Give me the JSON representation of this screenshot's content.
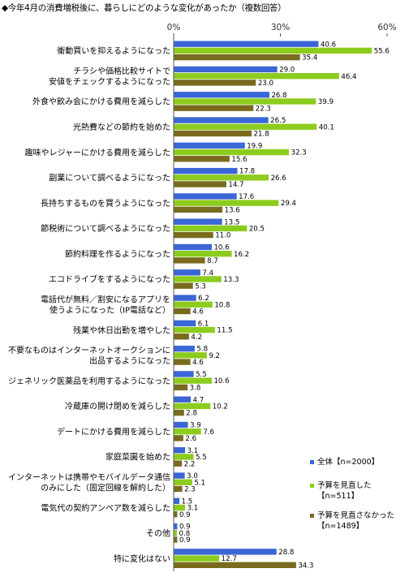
{
  "title": "◆今年4月の消費増税後に、暮らしにどのような変化があったか（複数回答）",
  "chart_data": {
    "type": "bar",
    "orientation": "horizontal",
    "xlim": [
      0,
      60
    ],
    "ticks": [
      {
        "value": 0,
        "label": "0%"
      },
      {
        "value": 30,
        "label": "30%"
      },
      {
        "value": 60,
        "label": "60%"
      }
    ],
    "grid": false,
    "legend_position": "right",
    "categories": [
      [
        "衝動買いを抑えるようになった"
      ],
      [
        "チラシや価格比較サイトで",
        "安値をチェックするようになった"
      ],
      [
        "外食や飲み会にかける費用を減らした"
      ],
      [
        "光熱費などの節約を始めた"
      ],
      [
        "趣味やレジャーにかける費用を減らした"
      ],
      [
        "副業について調べるようになった"
      ],
      [
        "長持ちするものを買うようになった"
      ],
      [
        "節税術について調べるようになった"
      ],
      [
        "節約料理を作るようになった"
      ],
      [
        "エコドライブをするようになった"
      ],
      [
        "電話代が無料／割安になるアプリを",
        "使うようになった（IP電話など）"
      ],
      [
        "残業や休日出勤を増やした"
      ],
      [
        "不要なものはインターネットオークションに",
        "出品するようになった"
      ],
      [
        "ジェネリック医薬品を利用するようになった"
      ],
      [
        "冷蔵庫の開け閉めを減らした"
      ],
      [
        "デートにかける費用を減らした"
      ],
      [
        "家庭菜園を始めた"
      ],
      [
        "インターネットは携帯やモバイルデータ通信",
        "のみにした（固定回線を解約した）"
      ],
      [
        "電気代の契約アンペア数を減らした"
      ],
      [
        "その他"
      ],
      [
        "特に変化はない"
      ]
    ],
    "series": [
      {
        "name": [
          "全体【n=2000】"
        ],
        "color": "#3a66d6",
        "values": [
          40.6,
          29.0,
          26.8,
          26.5,
          19.9,
          17.8,
          17.6,
          13.5,
          10.6,
          7.4,
          6.2,
          6.1,
          5.8,
          5.5,
          4.7,
          3.9,
          3.1,
          3.0,
          1.5,
          0.9,
          28.8
        ]
      },
      {
        "name": [
          "予算を見直した",
          "【n=511】"
        ],
        "color": "#8ccc1e",
        "values": [
          55.6,
          46.4,
          39.9,
          40.1,
          32.3,
          26.6,
          29.4,
          20.5,
          16.2,
          13.3,
          10.8,
          11.5,
          9.2,
          10.6,
          10.2,
          7.6,
          5.5,
          5.1,
          3.1,
          0.8,
          12.7
        ]
      },
      {
        "name": [
          "予算を見直さなかった",
          "【n=1489】"
        ],
        "color": "#7a6a1e",
        "values": [
          35.4,
          23.0,
          22.3,
          21.8,
          15.6,
          14.7,
          13.6,
          11.0,
          8.7,
          5.3,
          4.6,
          4.2,
          4.6,
          3.8,
          2.8,
          2.6,
          2.2,
          2.3,
          0.9,
          0.9,
          34.3
        ]
      }
    ]
  }
}
